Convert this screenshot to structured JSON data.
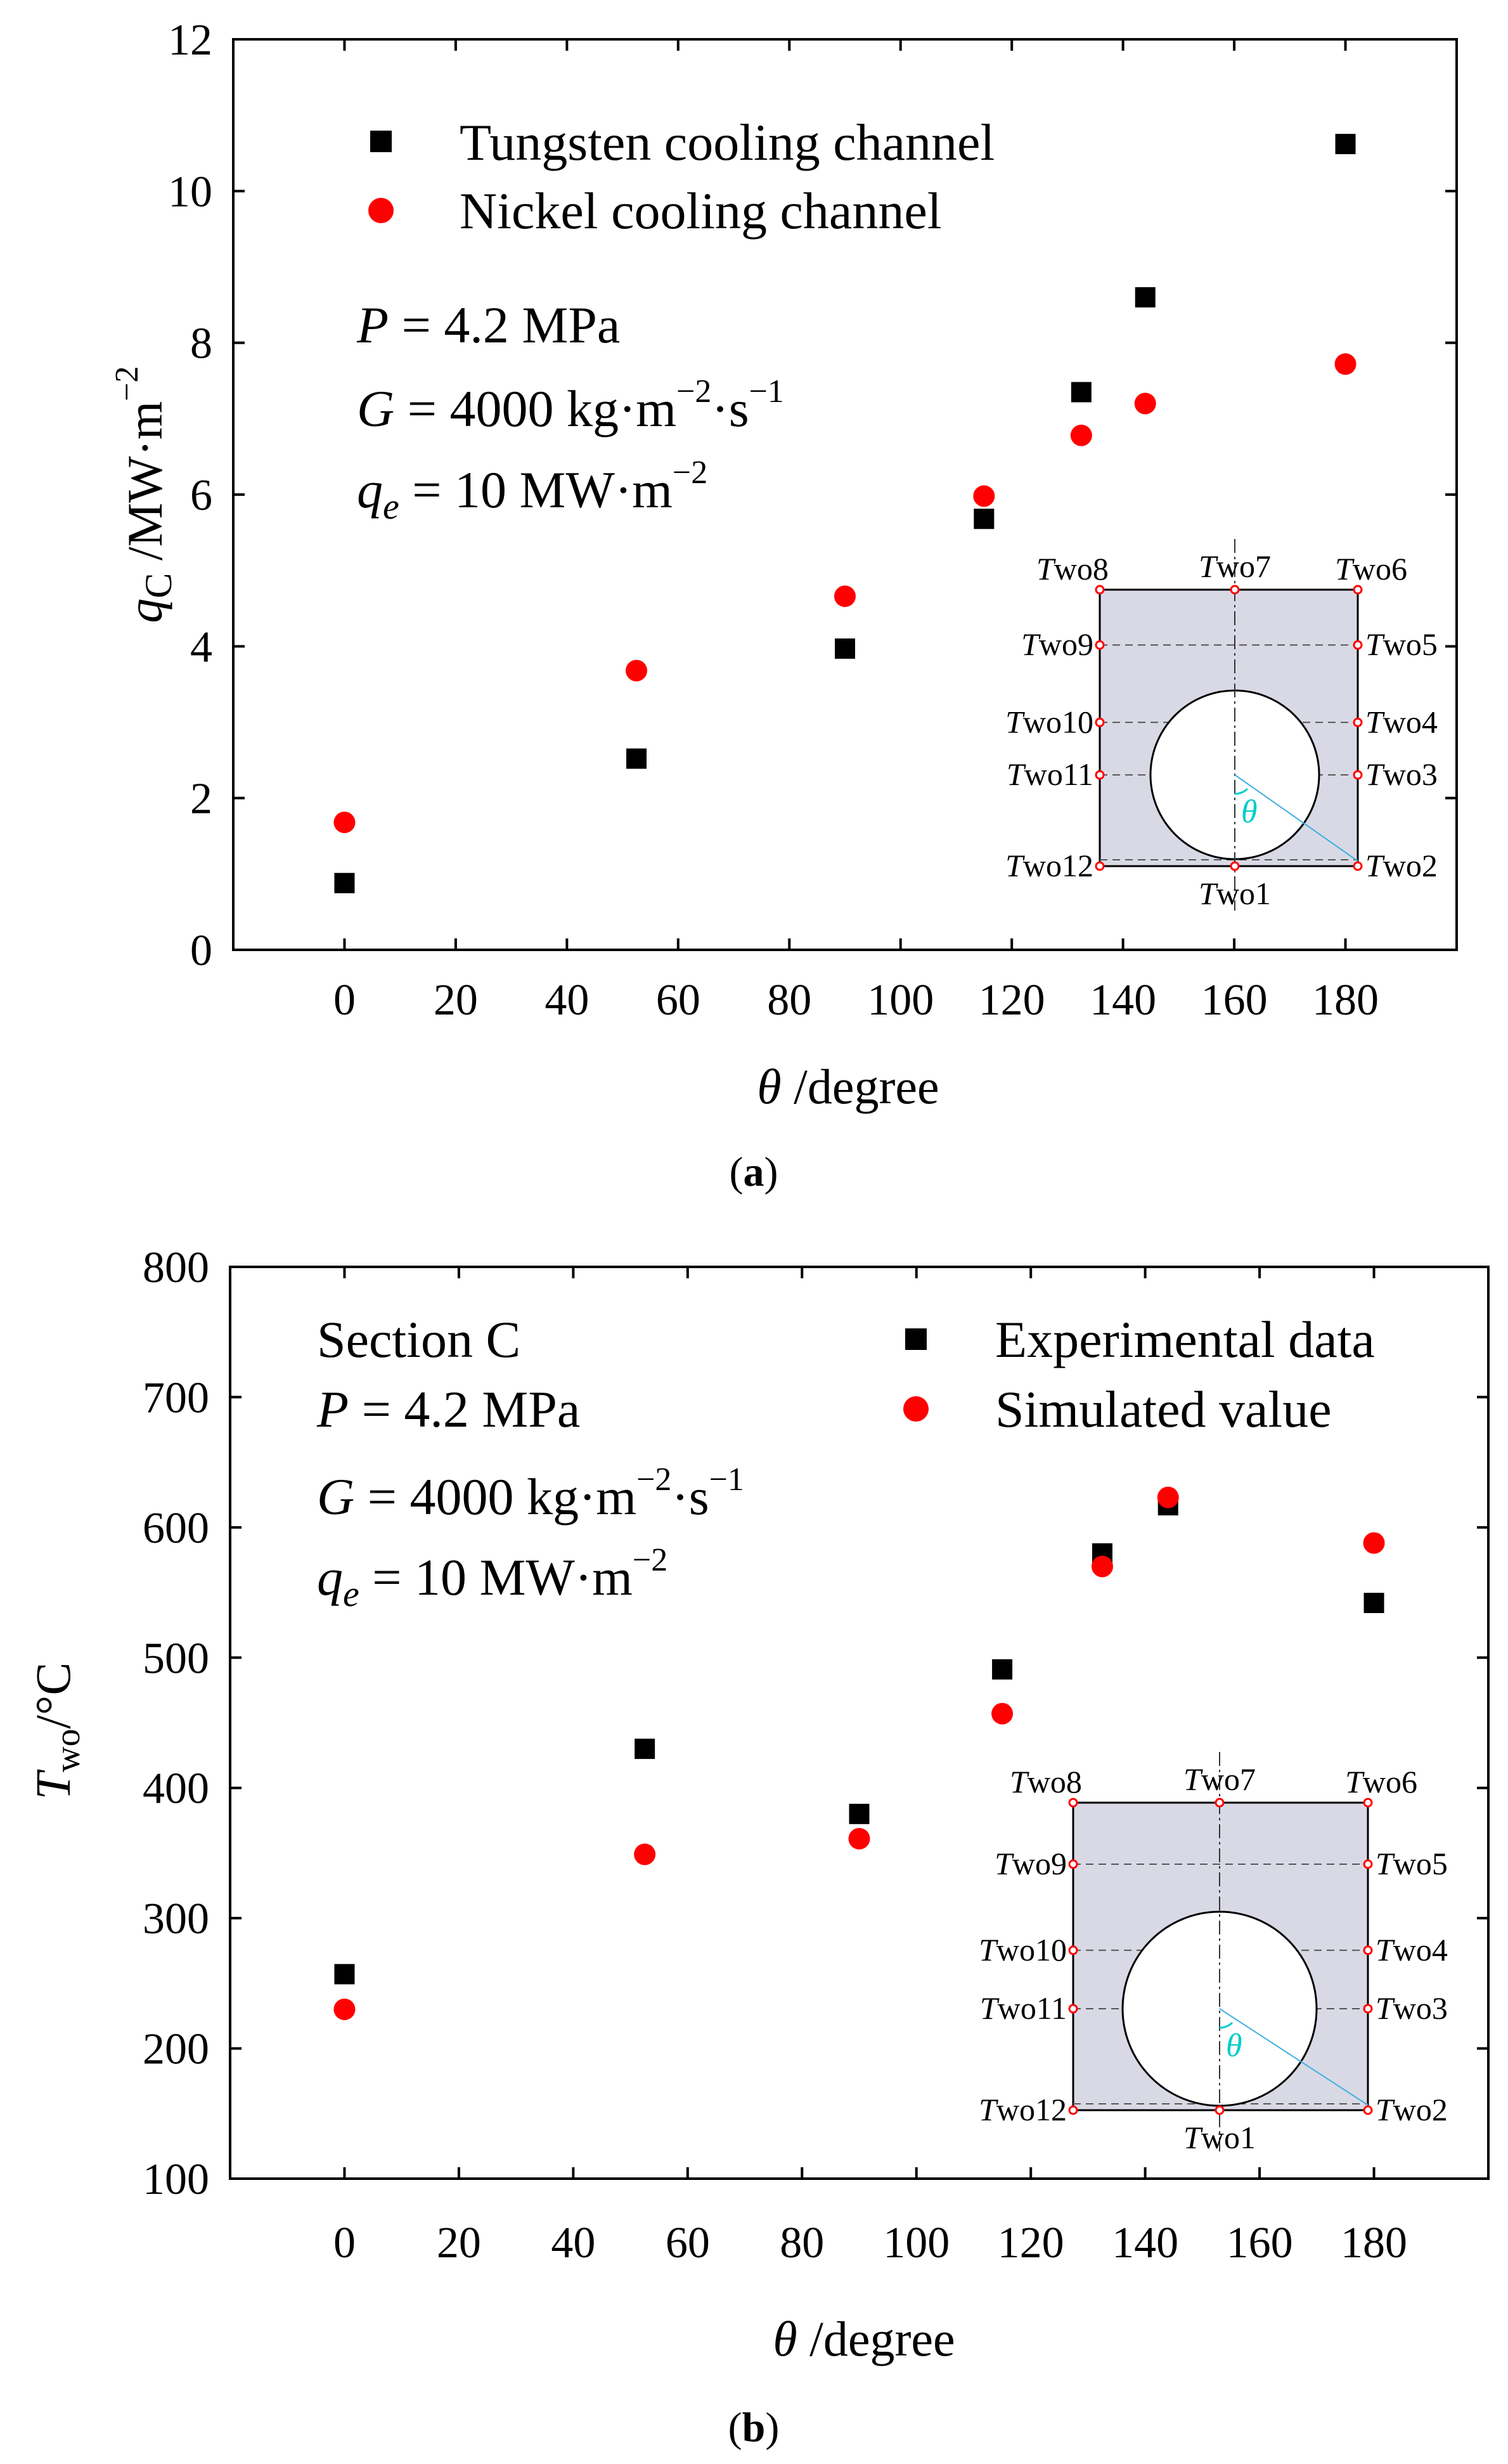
{
  "chart_data": [
    {
      "id": "a",
      "type": "scatter",
      "caption": "a",
      "xlabel": "θ /degree",
      "ylabel": "q_C /MW·m^-2",
      "xlim": [
        -20,
        200
      ],
      "ylim": [
        0,
        12
      ],
      "xticks": [
        0,
        20,
        40,
        60,
        80,
        100,
        120,
        140,
        160,
        180
      ],
      "yticks": [
        0,
        2,
        4,
        6,
        8,
        10,
        12
      ],
      "grid": false,
      "legend_position": "top-left",
      "series": [
        {
          "name": "Tungsten cooling channel",
          "marker": "square",
          "color": "#000000",
          "x": [
            0,
            52.5,
            90,
            115,
            132.5,
            144,
            180
          ],
          "y": [
            0.88,
            2.52,
            3.97,
            5.68,
            7.35,
            8.6,
            10.62
          ]
        },
        {
          "name": "Nickel cooling channel",
          "marker": "circle",
          "color": "#ff0000",
          "x": [
            0,
            52.5,
            90,
            115,
            132.5,
            144,
            180
          ],
          "y": [
            1.68,
            3.68,
            4.66,
            5.98,
            6.78,
            7.2,
            7.72
          ]
        }
      ],
      "params": {
        "p_var": "P",
        "p_val": " = 4.2 MPa",
        "g_var": "G",
        "g_val": " = 4000 kg·m",
        "g_exp1": "−2",
        "g_mid": "·s",
        "g_exp2": "−1",
        "q_var": "q",
        "q_sub": "e",
        "q_val": " = 10 MW·m",
        "q_exp": "−2"
      },
      "ylabel_parts": {
        "var": "q",
        "sub": "C",
        "unit": " /MW·m",
        "exp": "−2"
      },
      "xlabel_parts": {
        "var": "θ",
        "unit": " /degree"
      },
      "inset": {
        "angle": "θ",
        "labels": [
          "Two1",
          "Two2",
          "Two3",
          "Two4",
          "Two5",
          "Two6",
          "Two7",
          "Two8",
          "Two9",
          "Two10",
          "Two11",
          "Two12"
        ]
      }
    },
    {
      "id": "b",
      "type": "scatter",
      "caption": "b",
      "xlabel": "θ /degree",
      "ylabel": "T_wo /°C",
      "xlim": [
        -20,
        200
      ],
      "ylim": [
        100,
        800
      ],
      "xticks": [
        0,
        20,
        40,
        60,
        80,
        100,
        120,
        140,
        160,
        180
      ],
      "yticks": [
        100,
        200,
        300,
        400,
        500,
        600,
        700,
        800
      ],
      "grid": false,
      "legend_position": "top-right",
      "series": [
        {
          "name": "Experimental data",
          "marker": "square",
          "color": "#000000",
          "x": [
            0,
            52.5,
            90,
            115,
            132.5,
            144,
            180
          ],
          "y": [
            257,
            430,
            380,
            491,
            580,
            617,
            542
          ]
        },
        {
          "name": "Simulated value",
          "marker": "circle",
          "color": "#ff0000",
          "x": [
            0,
            52.5,
            90,
            115,
            132.5,
            144,
            180
          ],
          "y": [
            230,
            349,
            361,
            457,
            570,
            623,
            588
          ]
        }
      ],
      "section_label": "Section C",
      "params": {
        "p_var": "P",
        "p_val": " = 4.2 MPa",
        "g_var": "G",
        "g_val": " = 4000 kg·m",
        "g_exp1": "−2",
        "g_mid": "·s",
        "g_exp2": "−1",
        "q_var": "q",
        "q_sub": "e",
        "q_val": " = 10 MW·m",
        "q_exp": "−2"
      },
      "ylabel_parts": {
        "var": "T",
        "sub": "wo",
        "unit": "/°C"
      },
      "xlabel_parts": {
        "var": "θ",
        "unit": " /degree"
      },
      "inset": {
        "angle": "θ",
        "labels": [
          "Two1",
          "Two2",
          "Two3",
          "Two4",
          "Two5",
          "Two6",
          "Two7",
          "Two8",
          "Two9",
          "Two10",
          "Two11",
          "Two12"
        ]
      }
    }
  ]
}
